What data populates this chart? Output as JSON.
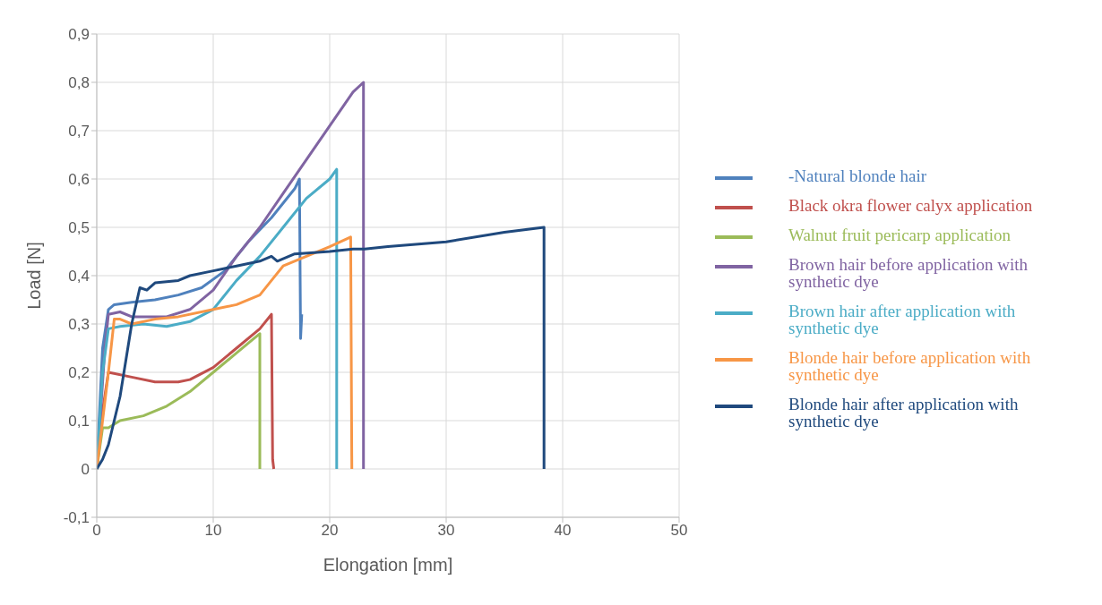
{
  "chart_data": {
    "type": "line",
    "xlabel": "Elongation [mm]",
    "ylabel": "Load [N]",
    "xlim": [
      0,
      50
    ],
    "xticks": [
      0,
      10,
      20,
      30,
      40,
      50
    ],
    "ylim": [
      -0.1,
      0.9
    ],
    "yticks": [
      {
        "value": -0.1,
        "label": "-0,1"
      },
      {
        "value": 0,
        "label": "0"
      },
      {
        "value": 0.1,
        "label": "0,1"
      },
      {
        "value": 0.2,
        "label": "0,2"
      },
      {
        "value": 0.3,
        "label": "0,3"
      },
      {
        "value": 0.4,
        "label": "0,4"
      },
      {
        "value": 0.5,
        "label": "0,5"
      },
      {
        "value": 0.6,
        "label": "0,6"
      },
      {
        "value": 0.7,
        "label": "0,7"
      },
      {
        "value": 0.8,
        "label": "0,8"
      },
      {
        "value": 0.9,
        "label": "0,9"
      }
    ],
    "grid": true,
    "legend": "right",
    "marker": "none",
    "line_style": "solid",
    "series": [
      {
        "name": "-Natural blonde hair",
        "color": "#4f81bd",
        "x": [
          0,
          0.5,
          1,
          1.5,
          3,
          5,
          7,
          9,
          11,
          13,
          15,
          17,
          17.4,
          17.5,
          17.6
        ],
        "values": [
          0,
          0.25,
          0.33,
          0.34,
          0.345,
          0.35,
          0.36,
          0.375,
          0.41,
          0.47,
          0.52,
          0.58,
          0.6,
          0.27,
          0.32
        ]
      },
      {
        "name": "Black okra flower calyx application",
        "color": "#c0504d",
        "x": [
          0,
          0.5,
          1,
          3,
          5,
          7,
          8,
          10,
          12,
          14,
          15,
          15.1,
          15.2
        ],
        "values": [
          0,
          0.12,
          0.2,
          0.19,
          0.18,
          0.18,
          0.185,
          0.21,
          0.25,
          0.29,
          0.32,
          0.02,
          0
        ]
      },
      {
        "name": "Walnut fruit pericarp application",
        "color": "#9bbb59",
        "x": [
          0,
          0.5,
          1,
          2,
          4,
          6,
          8,
          10,
          12,
          13.5,
          14,
          14
        ],
        "values": [
          0,
          0.085,
          0.085,
          0.1,
          0.11,
          0.13,
          0.16,
          0.2,
          0.24,
          0.27,
          0.28,
          0
        ]
      },
      {
        "name": "Brown hair before application with synthetic dye",
        "color": "#8064a2",
        "x": [
          0,
          0.7,
          1,
          2,
          3,
          6,
          8,
          10,
          12,
          14,
          16,
          18,
          20,
          22,
          22.9,
          22.9
        ],
        "values": [
          0,
          0.25,
          0.32,
          0.325,
          0.315,
          0.315,
          0.33,
          0.37,
          0.44,
          0.5,
          0.57,
          0.64,
          0.71,
          0.78,
          0.8,
          0
        ]
      },
      {
        "name": "Brown hair after application with synthetic dye",
        "color": "#4bacc6",
        "x": [
          0,
          0.5,
          1,
          2,
          4,
          6,
          8,
          10,
          12,
          14,
          16,
          18,
          20,
          20.6,
          20.6
        ],
        "values": [
          0,
          0.2,
          0.29,
          0.295,
          0.3,
          0.295,
          0.305,
          0.33,
          0.39,
          0.44,
          0.5,
          0.56,
          0.6,
          0.62,
          0
        ]
      },
      {
        "name": "Blonde hair before application with synthetic dye",
        "color": "#f79646",
        "x": [
          0,
          1,
          1.5,
          2,
          3,
          5,
          7,
          10,
          12,
          14,
          15,
          16,
          18,
          20,
          21.8,
          21.9
        ],
        "values": [
          0,
          0.2,
          0.31,
          0.31,
          0.3,
          0.31,
          0.315,
          0.33,
          0.34,
          0.36,
          0.39,
          0.42,
          0.44,
          0.46,
          0.48,
          0
        ]
      },
      {
        "name": "Blonde hair after application with synthetic dye",
        "color": "#1f497d",
        "x": [
          0,
          0.5,
          1,
          2,
          3,
          3.7,
          4.3,
          5,
          7,
          8,
          10,
          12,
          14,
          15,
          15.5,
          17,
          20,
          22,
          23,
          25,
          30,
          35,
          38.4,
          38.4
        ],
        "values": [
          0,
          0.02,
          0.05,
          0.15,
          0.3,
          0.375,
          0.37,
          0.385,
          0.39,
          0.4,
          0.41,
          0.42,
          0.43,
          0.44,
          0.43,
          0.445,
          0.45,
          0.455,
          0.455,
          0.46,
          0.47,
          0.49,
          0.5,
          0
        ]
      }
    ]
  }
}
